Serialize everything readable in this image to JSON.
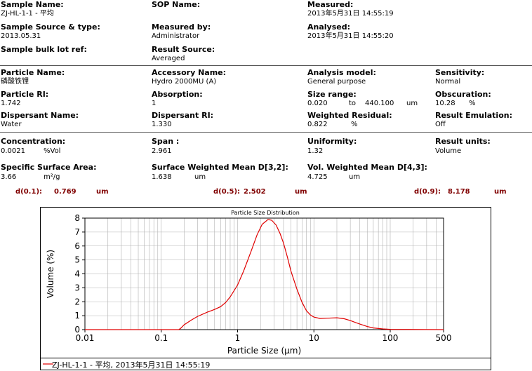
{
  "header": {
    "sample_name_label": "Sample Name:",
    "sample_name": "ZJ-HL-1-1 - 平均",
    "sop_name_label": "SOP Name:",
    "sop_name": "",
    "measured_label": "Measured:",
    "measured": "2013年5月31日 14:55:19",
    "sample_source_label": "Sample Source & type:",
    "sample_source": "2013.05.31",
    "measured_by_label": "Measured by:",
    "measured_by": "Administrator",
    "analysed_label": "Analysed:",
    "analysed": "2013年5月31日 14:55:20",
    "bulk_lot_label": "Sample bulk lot ref:",
    "result_source_label": "Result Source:",
    "result_source": "Averaged"
  },
  "particle": {
    "particle_name_label": "Particle Name:",
    "particle_name": "磷酸铁锂",
    "accessory_label": "Accessory Name:",
    "accessory": "Hydro 2000MU (A)",
    "model_label": "Analysis model:",
    "model": "General purpose",
    "sensitivity_label": "Sensitivity:",
    "sensitivity": "Normal",
    "ri_label": "Particle RI:",
    "ri": "1.742",
    "absorption_label": "Absorption:",
    "absorption": "1",
    "size_range_label": "Size range:",
    "size_from": "0.020",
    "size_to_word": "to",
    "size_to": "440.100",
    "size_unit": "um",
    "obscuration_label": "Obscuration:",
    "obscuration": "10.28",
    "obscuration_unit": "%",
    "dispersant_label": "Dispersant Name:",
    "dispersant": "Water",
    "dispersant_ri_label": "Dispersant RI:",
    "dispersant_ri": "1.330",
    "weighted_residual_label": "Weighted Residual:",
    "weighted_residual": "0.822",
    "weighted_residual_unit": "%",
    "emulation_label": "Result Emulation:",
    "emulation": "Off"
  },
  "results": {
    "concentration_label": "Concentration:",
    "concentration": "0.0021",
    "concentration_unit": "%Vol",
    "span_label": "Span :",
    "span": "2.961",
    "uniformity_label": "Uniformity:",
    "uniformity": "1.32",
    "result_units_label": "Result units:",
    "result_units": "Volume",
    "ssa_label": "Specific Surface Area:",
    "ssa": "3.66",
    "ssa_unit": "m²/g",
    "d32_label": "Surface Weighted Mean D[3,2]:",
    "d32": "1.638",
    "d32_unit": "um",
    "d43_label": "Vol. Weighted Mean D[4,3]:",
    "d43": "4.725",
    "d43_unit": "um"
  },
  "dvalues": {
    "d01_label": "d(0.1):",
    "d01": "0.769",
    "d05_label": "d(0.5):",
    "d05": "2.502",
    "d09_label": "d(0.9):",
    "d09": "8.178",
    "unit": "um"
  },
  "colors": {
    "curve": "#e00000",
    "dvalue_text": "#800000",
    "grid": "#b0b0b0"
  },
  "chart_data": {
    "type": "line",
    "title": "Particle Size Distribution",
    "xlabel": "Particle Size (μm)",
    "ylabel": "Volume (%)",
    "x_scale": "log",
    "xlim": [
      0.01,
      500
    ],
    "ylim": [
      0,
      8
    ],
    "x_ticks": [
      0.01,
      0.1,
      1,
      10,
      100,
      500
    ],
    "x_tick_labels": [
      "0.01",
      "0.1",
      "1",
      "10",
      "100",
      "500"
    ],
    "y_ticks": [
      0,
      1,
      2,
      3,
      4,
      5,
      6,
      7,
      8
    ],
    "y_tick_labels": [
      "0",
      "1",
      "2",
      "3",
      "4",
      "5",
      "6",
      "7",
      "8"
    ],
    "grid": true,
    "legend": "bottom",
    "series": [
      {
        "name": "ZJ-HL-1-1 - 平均, 2013年5月31日 14:55:19",
        "x": [
          0.01,
          0.17,
          0.18,
          0.2,
          0.25,
          0.3,
          0.4,
          0.5,
          0.6,
          0.7,
          0.8,
          1.0,
          1.2,
          1.5,
          1.8,
          2.1,
          2.5,
          2.8,
          3.2,
          3.6,
          4.0,
          4.5,
          5.0,
          6.0,
          7.0,
          8.0,
          9.0,
          10.0,
          12.0,
          15.0,
          20.0,
          25.0,
          30.0,
          40.0,
          50.0,
          60.0,
          80.0,
          100.0,
          500.0
        ],
        "y": [
          0,
          0,
          0.1,
          0.35,
          0.7,
          0.95,
          1.25,
          1.45,
          1.65,
          1.95,
          2.35,
          3.2,
          4.2,
          5.6,
          6.8,
          7.55,
          7.9,
          7.85,
          7.5,
          6.9,
          6.2,
          5.2,
          4.2,
          2.9,
          1.95,
          1.35,
          1.05,
          0.9,
          0.8,
          0.82,
          0.85,
          0.78,
          0.65,
          0.4,
          0.22,
          0.12,
          0.05,
          0.02,
          0
        ]
      }
    ]
  }
}
